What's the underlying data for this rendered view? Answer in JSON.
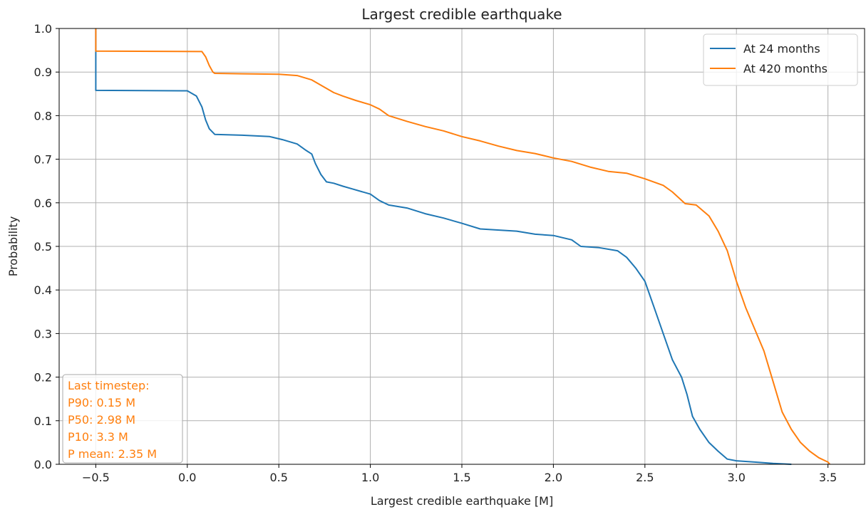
{
  "chart_data": {
    "type": "line",
    "title": "Largest credible earthquake",
    "xlabel": "Largest credible earthquake [M]",
    "ylabel": "Probability",
    "xlim": [
      -0.7,
      3.7
    ],
    "ylim": [
      0.0,
      1.0
    ],
    "grid": true,
    "legend_position": "top-right",
    "x_ticks": [
      -0.5,
      0.0,
      0.5,
      1.0,
      1.5,
      2.0,
      2.5,
      3.0,
      3.5
    ],
    "x_tick_labels": [
      "−0.5",
      "0.0",
      "0.5",
      "1.0",
      "1.5",
      "2.0",
      "2.5",
      "3.0",
      "3.5"
    ],
    "y_ticks": [
      0.0,
      0.1,
      0.2,
      0.3,
      0.4,
      0.5,
      0.6,
      0.7,
      0.8,
      0.9,
      1.0
    ],
    "y_tick_labels": [
      "0.0",
      "0.1",
      "0.2",
      "0.3",
      "0.4",
      "0.5",
      "0.6",
      "0.7",
      "0.8",
      "0.9",
      "1.0"
    ],
    "series": [
      {
        "name": "At 24 months",
        "color": "#1f77b4",
        "x": [
          -0.5,
          -0.5,
          -0.5,
          0.0,
          0.05,
          0.08,
          0.1,
          0.12,
          0.15,
          0.3,
          0.45,
          0.52,
          0.6,
          0.65,
          0.68,
          0.7,
          0.73,
          0.76,
          0.8,
          0.85,
          0.9,
          1.0,
          1.05,
          1.1,
          1.2,
          1.3,
          1.4,
          1.5,
          1.6,
          1.8,
          1.9,
          2.0,
          2.1,
          2.15,
          2.25,
          2.35,
          2.4,
          2.45,
          2.5,
          2.55,
          2.6,
          2.65,
          2.7,
          2.73,
          2.76,
          2.8,
          2.85,
          2.9,
          2.95,
          3.0,
          3.1,
          3.2,
          3.3
        ],
        "y": [
          1.0,
          0.92,
          0.858,
          0.857,
          0.845,
          0.82,
          0.79,
          0.77,
          0.757,
          0.755,
          0.752,
          0.745,
          0.735,
          0.72,
          0.712,
          0.69,
          0.665,
          0.648,
          0.645,
          0.638,
          0.632,
          0.62,
          0.605,
          0.595,
          0.588,
          0.575,
          0.565,
          0.553,
          0.54,
          0.535,
          0.528,
          0.525,
          0.515,
          0.5,
          0.497,
          0.49,
          0.475,
          0.45,
          0.42,
          0.36,
          0.3,
          0.24,
          0.2,
          0.16,
          0.11,
          0.08,
          0.05,
          0.03,
          0.012,
          0.008,
          0.005,
          0.002,
          0.0
        ]
      },
      {
        "name": "At 420 months",
        "color": "#ff7f0e",
        "x": [
          -0.5,
          -0.5,
          -0.5,
          0.08,
          0.1,
          0.12,
          0.14,
          0.15,
          0.3,
          0.5,
          0.6,
          0.68,
          0.75,
          0.8,
          0.85,
          0.92,
          1.0,
          1.05,
          1.1,
          1.2,
          1.3,
          1.4,
          1.5,
          1.6,
          1.7,
          1.8,
          1.9,
          2.0,
          2.1,
          2.2,
          2.3,
          2.4,
          2.5,
          2.6,
          2.65,
          2.72,
          2.78,
          2.85,
          2.9,
          2.95,
          3.0,
          3.05,
          3.1,
          3.15,
          3.2,
          3.25,
          3.3,
          3.35,
          3.4,
          3.45,
          3.5,
          3.51
        ],
        "y": [
          1.0,
          0.96,
          0.948,
          0.947,
          0.935,
          0.915,
          0.9,
          0.897,
          0.896,
          0.895,
          0.892,
          0.882,
          0.865,
          0.853,
          0.845,
          0.835,
          0.825,
          0.815,
          0.8,
          0.787,
          0.775,
          0.765,
          0.752,
          0.742,
          0.73,
          0.72,
          0.713,
          0.703,
          0.695,
          0.682,
          0.672,
          0.668,
          0.655,
          0.64,
          0.625,
          0.598,
          0.595,
          0.57,
          0.535,
          0.49,
          0.42,
          0.36,
          0.31,
          0.26,
          0.19,
          0.12,
          0.08,
          0.05,
          0.03,
          0.015,
          0.005,
          0.0
        ]
      }
    ],
    "annotation": {
      "lines": [
        "Last timestep:",
        "P90: 0.15 M",
        "P50: 2.98 M",
        "P10: 3.3 M",
        "P mean: 2.35 M"
      ],
      "color": "#ff7f0e"
    }
  }
}
